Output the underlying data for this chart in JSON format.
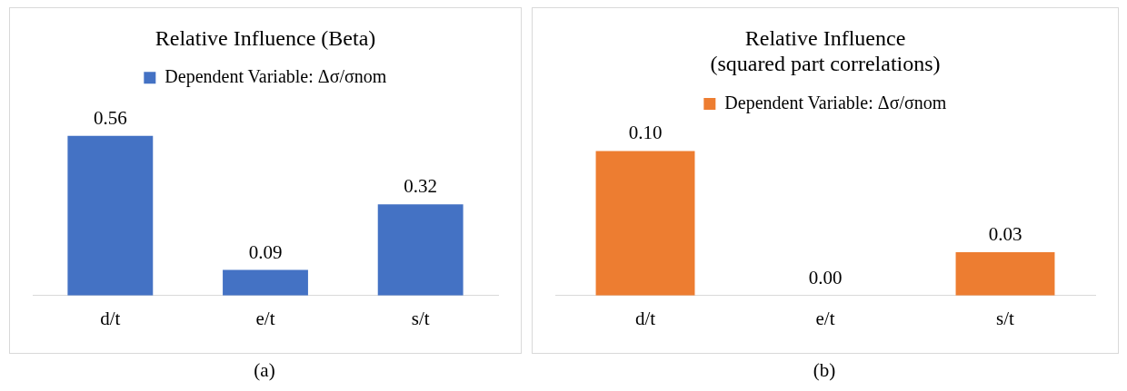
{
  "chart_data": [
    {
      "type": "bar",
      "title": "Relative Influence (Beta)",
      "categories": [
        "d/t",
        "e/t",
        "s/t"
      ],
      "series": [
        {
          "name": "Dependent Variable: Δσ/σnom",
          "color": "#4472c4",
          "values": [
            0.56,
            0.09,
            0.32
          ],
          "value_labels": [
            "0.56",
            "0.09",
            "0.32"
          ]
        }
      ],
      "legend": "top",
      "annotations": [
        "(a)"
      ]
    },
    {
      "type": "bar",
      "title": "Relative Influence\n(squared part correlations)",
      "categories": [
        "d/t",
        "e/t",
        "s/t"
      ],
      "series": [
        {
          "name": "Dependent Variable: Δσ/σnom",
          "color": "#ed7d31",
          "values": [
            0.1,
            0.0,
            0.03
          ],
          "value_labels": [
            "0.10",
            "0.00",
            "0.03"
          ]
        }
      ],
      "legend": "top",
      "annotations": [
        "(b)"
      ]
    }
  ]
}
